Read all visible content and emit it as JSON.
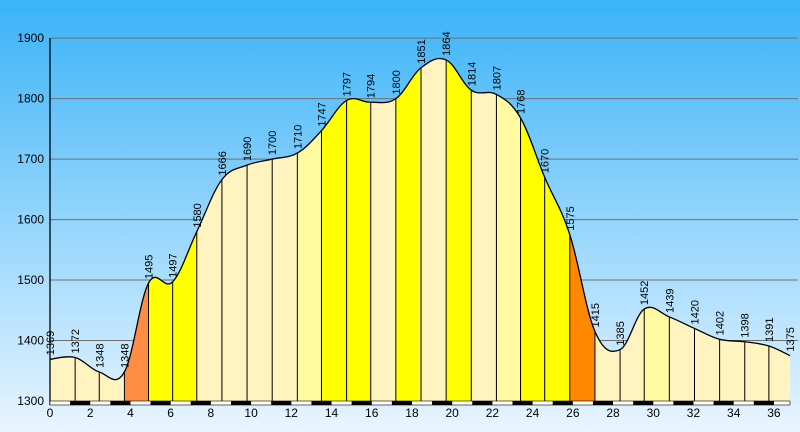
{
  "chart_data": {
    "type": "area",
    "title": "",
    "xlabel": "",
    "ylabel": "",
    "xlim": [
      0,
      36.8
    ],
    "ylim": [
      1300,
      1930
    ],
    "y_ticks": [
      1300,
      1400,
      1500,
      1600,
      1700,
      1800,
      1900
    ],
    "x_ticks": [
      0,
      2,
      4,
      6,
      8,
      10,
      12,
      14,
      16,
      18,
      20,
      22,
      24,
      26,
      28,
      30,
      32,
      34,
      36
    ],
    "grid": true,
    "legend": "none",
    "points": [
      {
        "x": 0,
        "y": 1369,
        "label": "1369"
      },
      {
        "x": 1.25,
        "y": 1372,
        "label": "1372"
      },
      {
        "x": 2.45,
        "y": 1348,
        "label": "1348"
      },
      {
        "x": 3.7,
        "y": 1348,
        "label": "1348"
      },
      {
        "x": 4.9,
        "y": 1495,
        "label": "1495"
      },
      {
        "x": 6.1,
        "y": 1497,
        "label": "1497"
      },
      {
        "x": 7.3,
        "y": 1580,
        "label": "1580"
      },
      {
        "x": 8.55,
        "y": 1666,
        "label": "1666"
      },
      {
        "x": 9.8,
        "y": 1690,
        "label": "1690"
      },
      {
        "x": 11.05,
        "y": 1700,
        "label": "1700"
      },
      {
        "x": 12.3,
        "y": 1710,
        "label": "1710"
      },
      {
        "x": 13.5,
        "y": 1747,
        "label": "1747"
      },
      {
        "x": 14.75,
        "y": 1797,
        "label": "1797"
      },
      {
        "x": 15.95,
        "y": 1794,
        "label": "1794"
      },
      {
        "x": 17.2,
        "y": 1800,
        "label": "1800"
      },
      {
        "x": 18.45,
        "y": 1851,
        "label": "1851"
      },
      {
        "x": 19.7,
        "y": 1864,
        "label": "1864"
      },
      {
        "x": 20.95,
        "y": 1814,
        "label": "1814"
      },
      {
        "x": 22.2,
        "y": 1807,
        "label": "1807"
      },
      {
        "x": 23.4,
        "y": 1768,
        "label": "1768"
      },
      {
        "x": 24.6,
        "y": 1670,
        "label": "1670"
      },
      {
        "x": 25.85,
        "y": 1575,
        "label": "1575"
      },
      {
        "x": 27.1,
        "y": 1415,
        "label": "1415"
      },
      {
        "x": 28.35,
        "y": 1385,
        "label": "1385"
      },
      {
        "x": 29.55,
        "y": 1452,
        "label": "1452"
      },
      {
        "x": 30.8,
        "y": 1439,
        "label": "1439"
      },
      {
        "x": 32.05,
        "y": 1420,
        "label": "1420"
      },
      {
        "x": 33.3,
        "y": 1402,
        "label": "1402"
      },
      {
        "x": 34.55,
        "y": 1398,
        "label": "1398"
      },
      {
        "x": 35.75,
        "y": 1391,
        "label": "1391"
      },
      {
        "x": 36.8,
        "y": 1375,
        "label": "1375"
      }
    ],
    "segment_colors": [
      "#FFF3C0",
      "#FFF3C0",
      "#FFF3C0",
      "#FF8C42",
      "#FFFF00",
      "#FFFF00",
      "#FFF3C0",
      "#FFF3C0",
      "#FFF3C0",
      "#FFF3C0",
      "#FFF9A0",
      "#FFFF00",
      "#FFFF00",
      "#FFF3C0",
      "#FFFF00",
      "#FFF3C0",
      "#FFFF00",
      "#FFF3C0",
      "#FFF9A0",
      "#FFFF00",
      "#FFFF00",
      "#FF8800",
      "#FFF3C0",
      "#FFF3C0",
      "#FFF9A0",
      "#FFF3C0",
      "#FFF3C0",
      "#FFF3C0",
      "#FFF3C0",
      "#FFF3C0"
    ],
    "colors": {
      "sky_top": "#3AB3F8",
      "sky_bottom": "#E9F5FF",
      "outline": "#000000",
      "grid": "#707070"
    }
  }
}
